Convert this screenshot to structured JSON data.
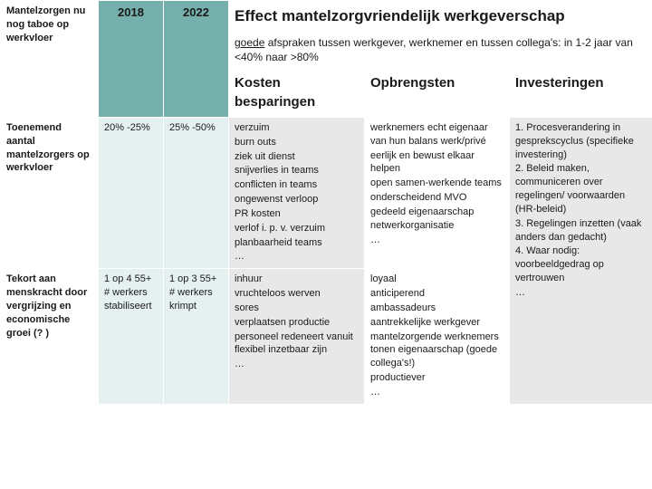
{
  "colors": {
    "teal": "#76b0ad",
    "ltteal": "#e5f1f0",
    "ltgrey": "#e8e8e8",
    "white": "#ffffff",
    "text": "#1a1a1a"
  },
  "header": {
    "row1_label": "Mantelzorgen nu nog taboe op werkvloer",
    "col_2018": "2018",
    "col_2022": "2022",
    "effect_title": "Effect mantelzorgvriendelijk werkgeverschap",
    "goede_underline": "goede",
    "effect_sub_rest": " afspraken tussen werkgever, werknemer en tussen collega's: in 1-2 jaar van <40% naar >80%",
    "kosten": "Kosten besparingen",
    "opbrengsten": "Opbrengsten",
    "investeringen": "Investeringen"
  },
  "row2": {
    "label": "Toenemend aantal mantelzorgers op werkvloer",
    "c2018": "20% -25%",
    "c2022": "25% -50%",
    "kosten": [
      "verzuim",
      "burn outs",
      "ziek uit dienst",
      "snijverlies in teams",
      "conflicten in teams",
      "ongewenst verloop",
      "PR kosten",
      "verlof i. p. v. verzuim",
      "planbaarheid teams",
      "…"
    ],
    "opbrengsten": [
      "werknemers echt eigenaar van hun balans werk/privé",
      "eerlijk en bewust elkaar helpen",
      "open samen-werkende teams",
      "onderscheidend MVO",
      "gedeeld eigenaarschap netwerkorganisatie",
      "…"
    ],
    "investeringen": [
      "1. Procesverandering in gesprekscyclus (specifieke investering)",
      "2. Beleid maken, communiceren over regelingen/ voorwaarden (HR-beleid)",
      "3. Regelingen inzetten (vaak anders dan gedacht)",
      "4. Waar nodig: voorbeeldgedrag op vertrouwen",
      "…"
    ]
  },
  "row3": {
    "label": "Tekort aan menskracht door vergrijzing en economische groei (? )",
    "c2018": "1 op 4 55+ # werkers stabiliseert",
    "c2022": "1 op 3 55+ # werkers krimpt",
    "kosten": [
      "inhuur",
      "vruchteloos werven",
      "sores",
      "verplaatsen productie",
      "personeel redeneert vanuit flexibel inzetbaar zijn",
      "…"
    ],
    "opbrengsten": [
      "loyaal",
      "anticiperend",
      "ambassadeurs",
      "aantrekkelijke werkgever",
      "mantelzorgende werknemers tonen eigenaarschap (goede collega's!)",
      "productiever",
      "…"
    ]
  }
}
